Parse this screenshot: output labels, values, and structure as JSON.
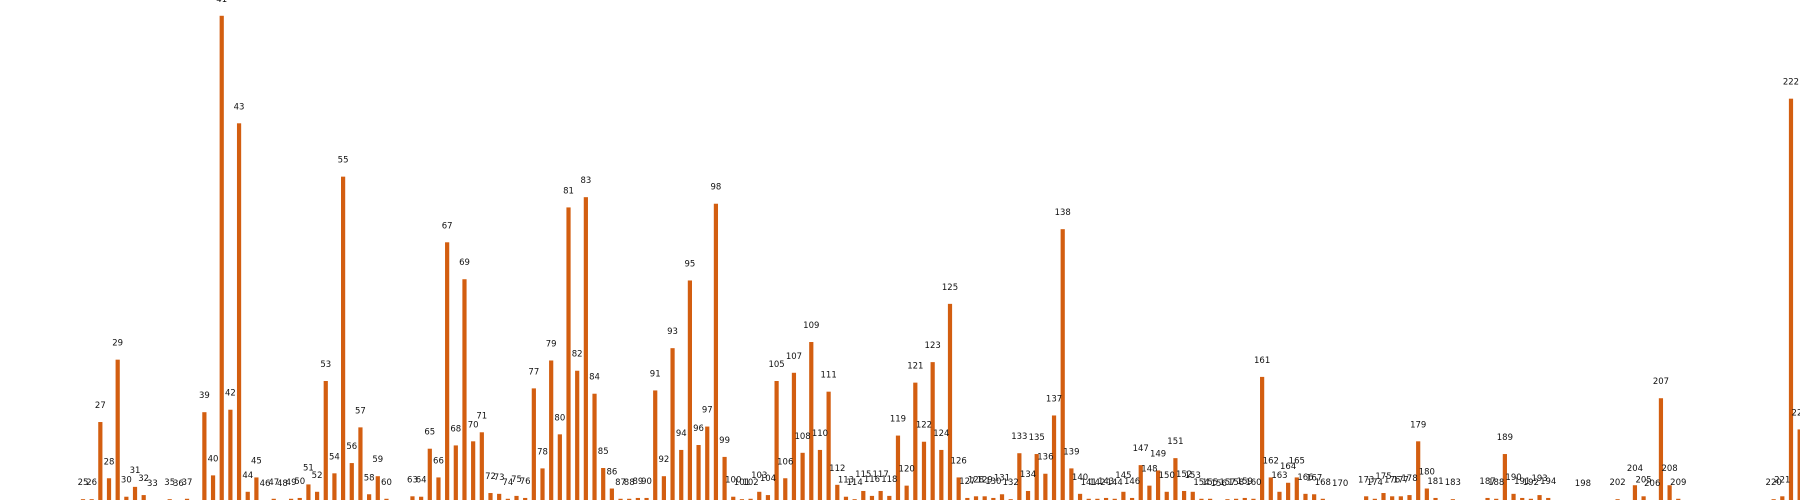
{
  "chart_data": {
    "type": "bar",
    "title": "",
    "xlabel": "",
    "ylabel": "",
    "bar_color": "#d35e10",
    "grid": false,
    "legend": "none",
    "ylim": [
      0,
      1160
    ],
    "bars": [
      {
        "x": 25,
        "value": 2
      },
      {
        "x": 26,
        "value": 2
      },
      {
        "x": 27,
        "value": 190
      },
      {
        "x": 28,
        "value": 53
      },
      {
        "x": 29,
        "value": 342
      },
      {
        "x": 30,
        "value": 8
      },
      {
        "x": 31,
        "value": 32
      },
      {
        "x": 32,
        "value": 12
      },
      {
        "x": 33,
        "value": 0
      },
      {
        "x": 35,
        "value": 2
      },
      {
        "x": 36,
        "value": 0
      },
      {
        "x": 37,
        "value": 3
      },
      {
        "x": 39,
        "value": 214
      },
      {
        "x": 40,
        "value": 60
      },
      {
        "x": 41,
        "value": 1180
      },
      {
        "x": 42,
        "value": 220
      },
      {
        "x": 43,
        "value": 918
      },
      {
        "x": 44,
        "value": 20
      },
      {
        "x": 45,
        "value": 55
      },
      {
        "x": 46,
        "value": 0
      },
      {
        "x": 47,
        "value": 3
      },
      {
        "x": 48,
        "value": 0
      },
      {
        "x": 49,
        "value": 3
      },
      {
        "x": 50,
        "value": 5
      },
      {
        "x": 51,
        "value": 38
      },
      {
        "x": 52,
        "value": 20
      },
      {
        "x": 53,
        "value": 290
      },
      {
        "x": 54,
        "value": 65
      },
      {
        "x": 55,
        "value": 788
      },
      {
        "x": 56,
        "value": 90
      },
      {
        "x": 57,
        "value": 177
      },
      {
        "x": 58,
        "value": 14
      },
      {
        "x": 59,
        "value": 58
      },
      {
        "x": 60,
        "value": 3
      },
      {
        "x": 63,
        "value": 9
      },
      {
        "x": 64,
        "value": 8
      },
      {
        "x": 65,
        "value": 125
      },
      {
        "x": 66,
        "value": 55
      },
      {
        "x": 67,
        "value": 628
      },
      {
        "x": 68,
        "value": 133
      },
      {
        "x": 69,
        "value": 538
      },
      {
        "x": 70,
        "value": 143
      },
      {
        "x": 71,
        "value": 165
      },
      {
        "x": 72,
        "value": 17
      },
      {
        "x": 73,
        "value": 15
      },
      {
        "x": 74,
        "value": 3
      },
      {
        "x": 75,
        "value": 10
      },
      {
        "x": 76,
        "value": 5
      },
      {
        "x": 77,
        "value": 272
      },
      {
        "x": 78,
        "value": 77
      },
      {
        "x": 79,
        "value": 340
      },
      {
        "x": 80,
        "value": 160
      },
      {
        "x": 81,
        "value": 713
      },
      {
        "x": 82,
        "value": 315
      },
      {
        "x": 83,
        "value": 738
      },
      {
        "x": 84,
        "value": 259
      },
      {
        "x": 85,
        "value": 78
      },
      {
        "x": 86,
        "value": 28
      },
      {
        "x": 87,
        "value": 3
      },
      {
        "x": 88,
        "value": 3
      },
      {
        "x": 89,
        "value": 5
      },
      {
        "x": 90,
        "value": 5
      },
      {
        "x": 91,
        "value": 267
      },
      {
        "x": 92,
        "value": 58
      },
      {
        "x": 93,
        "value": 370
      },
      {
        "x": 94,
        "value": 122
      },
      {
        "x": 95,
        "value": 535
      },
      {
        "x": 96,
        "value": 134
      },
      {
        "x": 97,
        "value": 179
      },
      {
        "x": 98,
        "value": 722
      },
      {
        "x": 99,
        "value": 105
      },
      {
        "x": 100,
        "value": 8
      },
      {
        "x": 101,
        "value": 2
      },
      {
        "x": 102,
        "value": 3
      },
      {
        "x": 103,
        "value": 20
      },
      {
        "x": 104,
        "value": 12
      },
      {
        "x": 105,
        "value": 290
      },
      {
        "x": 106,
        "value": 53
      },
      {
        "x": 107,
        "value": 310
      },
      {
        "x": 108,
        "value": 115
      },
      {
        "x": 109,
        "value": 385
      },
      {
        "x": 110,
        "value": 122
      },
      {
        "x": 111,
        "value": 264
      },
      {
        "x": 112,
        "value": 37
      },
      {
        "x": 113,
        "value": 8
      },
      {
        "x": 114,
        "value": 2
      },
      {
        "x": 115,
        "value": 22
      },
      {
        "x": 116,
        "value": 10
      },
      {
        "x": 117,
        "value": 22
      },
      {
        "x": 118,
        "value": 10
      },
      {
        "x": 119,
        "value": 157
      },
      {
        "x": 120,
        "value": 35
      },
      {
        "x": 121,
        "value": 286
      },
      {
        "x": 122,
        "value": 142
      },
      {
        "x": 123,
        "value": 336
      },
      {
        "x": 124,
        "value": 122
      },
      {
        "x": 125,
        "value": 478
      },
      {
        "x": 126,
        "value": 55
      },
      {
        "x": 127,
        "value": 5
      },
      {
        "x": 128,
        "value": 9
      },
      {
        "x": 129,
        "value": 9
      },
      {
        "x": 130,
        "value": 5
      },
      {
        "x": 131,
        "value": 14
      },
      {
        "x": 132,
        "value": 2
      },
      {
        "x": 133,
        "value": 114
      },
      {
        "x": 134,
        "value": 22
      },
      {
        "x": 135,
        "value": 112
      },
      {
        "x": 136,
        "value": 64
      },
      {
        "x": 137,
        "value": 206
      },
      {
        "x": 138,
        "value": 660
      },
      {
        "x": 139,
        "value": 77
      },
      {
        "x": 140,
        "value": 15
      },
      {
        "x": 141,
        "value": 3
      },
      {
        "x": 142,
        "value": 3
      },
      {
        "x": 143,
        "value": 5
      },
      {
        "x": 144,
        "value": 3
      },
      {
        "x": 145,
        "value": 20
      },
      {
        "x": 146,
        "value": 5
      },
      {
        "x": 147,
        "value": 85
      },
      {
        "x": 148,
        "value": 35
      },
      {
        "x": 149,
        "value": 72
      },
      {
        "x": 150,
        "value": 20
      },
      {
        "x": 151,
        "value": 102
      },
      {
        "x": 152,
        "value": 22
      },
      {
        "x": 153,
        "value": 20
      },
      {
        "x": 154,
        "value": 3
      },
      {
        "x": 155,
        "value": 3
      },
      {
        "x": 156,
        "value": 0
      },
      {
        "x": 157,
        "value": 2
      },
      {
        "x": 158,
        "value": 3
      },
      {
        "x": 159,
        "value": 5
      },
      {
        "x": 160,
        "value": 3
      },
      {
        "x": 161,
        "value": 300
      },
      {
        "x": 162,
        "value": 55
      },
      {
        "x": 163,
        "value": 20
      },
      {
        "x": 164,
        "value": 42
      },
      {
        "x": 165,
        "value": 55
      },
      {
        "x": 166,
        "value": 15
      },
      {
        "x": 167,
        "value": 14
      },
      {
        "x": 168,
        "value": 3
      },
      {
        "x": 170,
        "value": 0
      },
      {
        "x": 173,
        "value": 9
      },
      {
        "x": 174,
        "value": 3
      },
      {
        "x": 175,
        "value": 17
      },
      {
        "x": 176,
        "value": 9
      },
      {
        "x": 177,
        "value": 9
      },
      {
        "x": 178,
        "value": 12
      },
      {
        "x": 179,
        "value": 143
      },
      {
        "x": 180,
        "value": 28
      },
      {
        "x": 181,
        "value": 5
      },
      {
        "x": 183,
        "value": 2
      },
      {
        "x": 187,
        "value": 5
      },
      {
        "x": 188,
        "value": 3
      },
      {
        "x": 189,
        "value": 112
      },
      {
        "x": 190,
        "value": 15
      },
      {
        "x": 191,
        "value": 5
      },
      {
        "x": 192,
        "value": 3
      },
      {
        "x": 193,
        "value": 12
      },
      {
        "x": 194,
        "value": 5
      },
      {
        "x": 198,
        "value": 0
      },
      {
        "x": 202,
        "value": 2
      },
      {
        "x": 204,
        "value": 36
      },
      {
        "x": 205,
        "value": 9
      },
      {
        "x": 206,
        "value": 0
      },
      {
        "x": 207,
        "value": 248
      },
      {
        "x": 208,
        "value": 36
      },
      {
        "x": 209,
        "value": 3
      },
      {
        "x": 220,
        "value": 2
      },
      {
        "x": 221,
        "value": 9
      },
      {
        "x": 222,
        "value": 978
      },
      {
        "x": 223,
        "value": 172
      },
      {
        "x": 224,
        "value": 14
      },
      {
        "x": 225,
        "value": 3
      }
    ]
  }
}
